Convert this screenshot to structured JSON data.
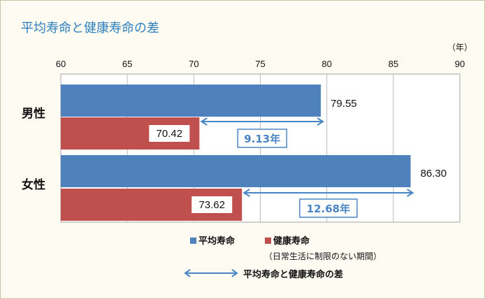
{
  "title": "平均寿命と健康寿命の差",
  "colors": {
    "avg": "#4f81bd",
    "healthy": "#c0504d",
    "arrow": "#4a86c5",
    "grid": "#bcbcbc"
  },
  "chart_data": {
    "type": "bar",
    "orientation": "horizontal",
    "unit_label": "（年）",
    "xlim": [
      60,
      90
    ],
    "ticks": [
      "60",
      "65",
      "70",
      "75",
      "80",
      "85",
      "90"
    ],
    "categories": [
      "男性",
      "女性"
    ],
    "series": [
      {
        "name": "平均寿命",
        "values": [
          79.55,
          86.3
        ],
        "labels": [
          "79.55",
          "86.30"
        ]
      },
      {
        "name": "健康寿命",
        "values": [
          70.42,
          73.62
        ],
        "labels": [
          "70.42",
          "73.62"
        ]
      }
    ],
    "differences": [
      "9.13年",
      "12.68年"
    ],
    "grid": true
  },
  "legend": {
    "avg": "平均寿命",
    "healthy": "健康寿命",
    "healthy_note": "（日常生活に制限のない期間）",
    "diff": "平均寿命と健康寿命の差"
  }
}
